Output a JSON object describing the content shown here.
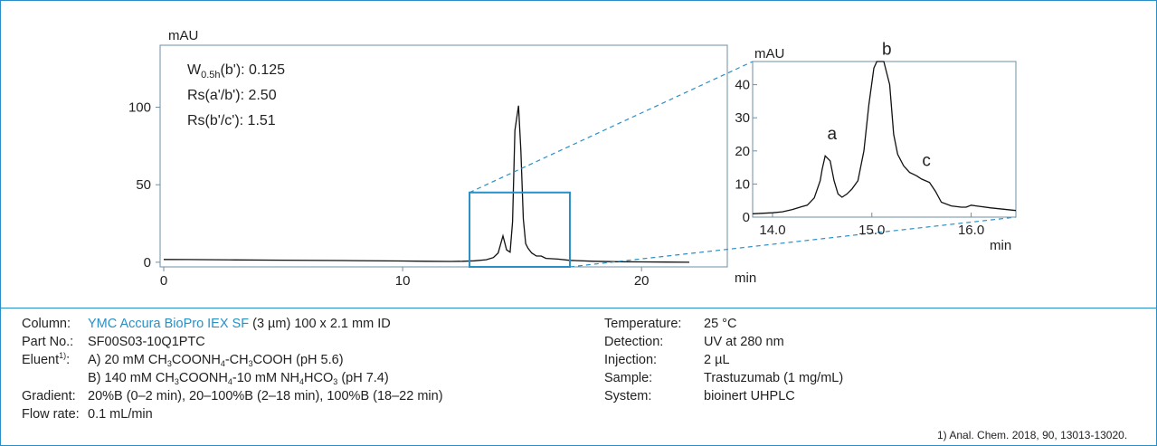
{
  "colors": {
    "frame": "#2a8fc6",
    "axis": "#6d8fa6",
    "trace": "#111111",
    "text": "#222222",
    "accent": "#2a8fc6"
  },
  "chart_data": [
    {
      "type": "line",
      "ylabel": "mAU",
      "xlabel": "min",
      "xlim": [
        0,
        22
      ],
      "ylim": [
        -3,
        140
      ],
      "xticks": [
        "0",
        "10",
        "20"
      ],
      "yticks": [
        "0",
        "50",
        "100"
      ],
      "annotations": [
        {
          "name": "W",
          "sub": "0.5h",
          "rest": "(b'): 0.125"
        },
        {
          "text": "Rs(a'/b'): 2.50"
        },
        {
          "text": "Rs(b'/c'): 1.51"
        }
      ],
      "series": [
        {
          "x": [
            0,
            1,
            3,
            5,
            8,
            10,
            11,
            12,
            12.5,
            13,
            13.5,
            13.8,
            14.0,
            14.2,
            14.35,
            14.5,
            14.6,
            14.7,
            14.85,
            14.95,
            15.05,
            15.15,
            15.25,
            15.4,
            15.6,
            15.8,
            16.0,
            16.5,
            17,
            18,
            19,
            20,
            21,
            22
          ],
          "y": [
            1.8,
            1.7,
            1.5,
            1.3,
            1.0,
            0.8,
            0.6,
            0.5,
            0.6,
            0.9,
            1.6,
            3.0,
            6.0,
            17.0,
            8.0,
            6.5,
            26.0,
            85.0,
            101.0,
            72.0,
            28.0,
            12.0,
            9.0,
            6.0,
            4.0,
            4.0,
            2.5,
            2.0,
            1.2,
            0.6,
            0.3,
            0.2,
            0.1,
            0.0
          ]
        }
      ],
      "zoom_region": {
        "x": [
          12.8,
          17.0
        ],
        "y": [
          -3,
          45
        ]
      }
    },
    {
      "type": "line",
      "ylabel": "mAU",
      "xlabel": "min",
      "xlim": [
        13.8,
        16.45
      ],
      "ylim": [
        0,
        47
      ],
      "xticks": [
        "14.0",
        "15.0",
        "16.0"
      ],
      "yticks": [
        "0",
        "10",
        "20",
        "30",
        "40"
      ],
      "peak_labels": [
        {
          "text": "a",
          "x": 14.6,
          "y": 23.5
        },
        {
          "text": "b",
          "x": 15.15,
          "y": 49
        },
        {
          "text": "c",
          "x": 15.55,
          "y": 15.5
        }
      ],
      "series": [
        {
          "x": [
            13.8,
            14.0,
            14.1,
            14.2,
            14.3,
            14.35,
            14.42,
            14.48,
            14.5,
            14.53,
            14.58,
            14.62,
            14.66,
            14.7,
            14.75,
            14.8,
            14.86,
            14.92,
            14.97,
            15.02,
            15.05,
            15.08,
            15.12,
            15.18,
            15.22,
            15.26,
            15.32,
            15.38,
            15.45,
            15.5,
            15.58,
            15.64,
            15.7,
            15.8,
            15.9,
            15.95,
            16.0,
            16.05,
            16.2,
            16.45
          ],
          "y": [
            1.0,
            1.3,
            1.6,
            2.3,
            3.2,
            3.6,
            5.8,
            11.0,
            14.5,
            18.5,
            17.0,
            11.0,
            7.0,
            6.0,
            7.0,
            8.5,
            11.0,
            20.0,
            34.0,
            45.0,
            48.0,
            48.0,
            48.0,
            40.0,
            25.0,
            19.0,
            15.5,
            13.5,
            12.5,
            11.5,
            10.5,
            7.8,
            4.5,
            3.4,
            3.0,
            3.0,
            3.6,
            3.4,
            2.8,
            2.0
          ]
        }
      ]
    }
  ],
  "conditions": {
    "left": [
      {
        "label": "Column:",
        "link": "YMC Accura BioPro IEX SF",
        "rest": " (3 µm) 100 x 2.1 mm ID"
      },
      {
        "label": "Part No.:",
        "value": "SF00S03-10Q1PTC"
      },
      {
        "label": "Eluent",
        "label_sup": "1)",
        "label_tail": ":",
        "parts": [
          "A) 20 mM CH",
          "3",
          "COONH",
          "4",
          "-CH",
          "3",
          "COOH (pH 5.6)"
        ]
      },
      {
        "label": "",
        "parts": [
          "B) 140 mM CH",
          "3",
          "COONH",
          "4",
          "-10 mM NH",
          "4",
          "HCO",
          "3",
          " (pH 7.4)"
        ]
      },
      {
        "label": "Gradient:",
        "value": "20%B (0–2 min), 20–100%B (2–18 min), 100%B (18–22 min)"
      },
      {
        "label": "Flow rate:",
        "value": "0.1 mL/min"
      }
    ],
    "right": [
      {
        "label": "Temperature:",
        "value": "25 °C"
      },
      {
        "label": "Detection:",
        "value": "UV at 280 nm"
      },
      {
        "label": "Injection:",
        "value": "2 µL"
      },
      {
        "label": "Sample:",
        "value": "Trastuzumab (1 mg/mL)"
      },
      {
        "label": "System:",
        "value": "bioinert UHPLC"
      }
    ]
  },
  "reference": "1) Anal. Chem. 2018, 90, 13013-13020."
}
